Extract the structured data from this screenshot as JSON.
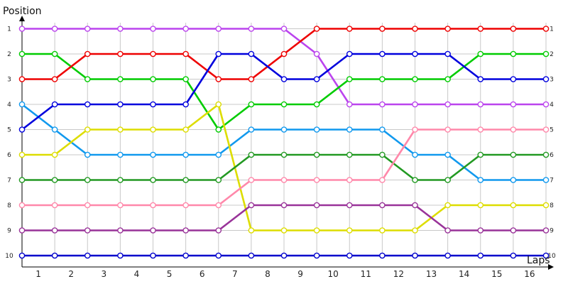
{
  "chart_data": {
    "type": "line",
    "title": "",
    "xlabel": "Laps",
    "ylabel": "Position",
    "x_ticks": [
      "1",
      "2",
      "3",
      "4",
      "5",
      "6",
      "7",
      "8",
      "9",
      "10",
      "11",
      "12",
      "13",
      "14",
      "15",
      "16"
    ],
    "y_ticks": [
      "1",
      "2",
      "3",
      "4",
      "5",
      "6",
      "7",
      "8",
      "9",
      "10"
    ],
    "ylim": [
      1,
      10
    ],
    "y_inverted": true,
    "grid": true,
    "x": [
      0,
      1,
      2,
      3,
      4,
      5,
      6,
      7,
      8,
      9,
      10,
      11,
      12,
      13,
      14,
      15,
      16
    ],
    "series": [
      {
        "color": "#bb44ee",
        "values": [
          1,
          1,
          1,
          1,
          1,
          1,
          1,
          1,
          1,
          2,
          4,
          4,
          4,
          4,
          4,
          4,
          4
        ]
      },
      {
        "color": "#00cc00",
        "values": [
          2,
          2,
          3,
          3,
          3,
          3,
          5,
          4,
          4,
          4,
          3,
          3,
          3,
          3,
          2,
          2,
          2
        ]
      },
      {
        "color": "#ee0000",
        "values": [
          3,
          3,
          2,
          2,
          2,
          2,
          3,
          3,
          2,
          1,
          1,
          1,
          1,
          1,
          1,
          1,
          1
        ]
      },
      {
        "color": "#1199ee",
        "values": [
          4,
          5,
          6,
          6,
          6,
          6,
          6,
          5,
          5,
          5,
          5,
          5,
          6,
          6,
          7,
          7,
          7
        ]
      },
      {
        "color": "#0000dd",
        "values": [
          5,
          4,
          4,
          4,
          4,
          4,
          2,
          2,
          3,
          3,
          2,
          2,
          2,
          2,
          3,
          3,
          3
        ]
      },
      {
        "color": "#dddd00",
        "values": [
          6,
          6,
          5,
          5,
          5,
          5,
          4,
          9,
          9,
          9,
          9,
          9,
          9,
          8,
          8,
          8,
          8
        ]
      },
      {
        "color": "#229922",
        "values": [
          7,
          7,
          7,
          7,
          7,
          7,
          7,
          6,
          6,
          6,
          6,
          6,
          7,
          7,
          6,
          6,
          6
        ]
      },
      {
        "color": "#ff88aa",
        "values": [
          8,
          8,
          8,
          8,
          8,
          8,
          8,
          7,
          7,
          7,
          7,
          7,
          5,
          5,
          5,
          5,
          5
        ]
      },
      {
        "color": "#993399",
        "values": [
          9,
          9,
          9,
          9,
          9,
          9,
          9,
          8,
          8,
          8,
          8,
          8,
          8,
          9,
          9,
          9,
          9
        ]
      },
      {
        "color": "#0000cc",
        "values": [
          10,
          10,
          10,
          10,
          10,
          10,
          10,
          10,
          10,
          10,
          10,
          10,
          10,
          10,
          10,
          10,
          10
        ]
      }
    ],
    "grid_color": "#c8c8c8",
    "axis_color": "#000000"
  }
}
